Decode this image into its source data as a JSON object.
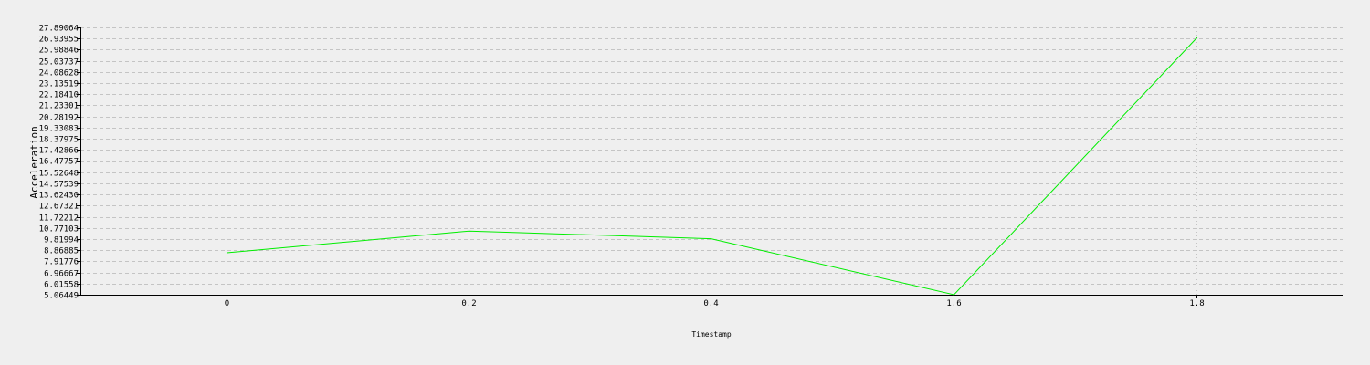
{
  "chart_data": {
    "type": "line",
    "title": "",
    "xlabel": "Timestamp",
    "ylabel": "Acceleration",
    "x_categories": [
      "0",
      "0.2",
      "0.4",
      "1.6",
      "1.8"
    ],
    "y_ticks": [
      "5.06449",
      "6.01558",
      "6.96667",
      "7.91776",
      "8.86885",
      "9.81994",
      "10.77103",
      "11.72212",
      "12.67321",
      "13.62430",
      "14.57539",
      "15.52648",
      "16.47757",
      "17.42866",
      "18.37975",
      "19.33083",
      "20.28192",
      "21.23301",
      "22.18410",
      "23.13519",
      "24.08628",
      "25.03737",
      "25.98846",
      "26.93955",
      "27.89064"
    ],
    "ylim": [
      5.06449,
      27.89064
    ],
    "grid": true,
    "series": [
      {
        "color": "#00ee00",
        "values": [
          8.65,
          10.5,
          9.85,
          5.06449,
          27.0
        ]
      }
    ]
  }
}
